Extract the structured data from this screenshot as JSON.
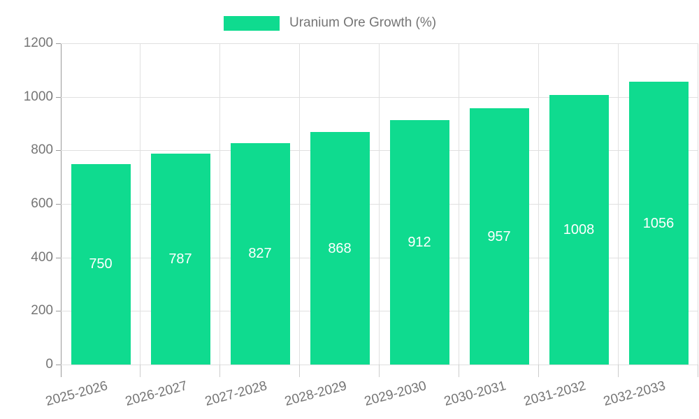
{
  "chart": {
    "legend": {
      "label": "Uranium Ore Growth (%)"
    },
    "colors": {
      "bar": "#0fdb8f",
      "grid": "#e0e0e0",
      "grid_dark": "#cccccc",
      "axis": "#999999",
      "text": "#757575",
      "value_label": "#ffffff",
      "background": "#ffffff"
    }
  },
  "chart_data": {
    "type": "bar",
    "title": "Uranium Ore Growth (%)",
    "series_name": "Uranium Ore Growth (%)",
    "categories": [
      "2025-2026",
      "2026-2027",
      "2027-2028",
      "2028-2029",
      "2029-2030",
      "2030-2031",
      "2031-2032",
      "2032-2033"
    ],
    "values": [
      750,
      787,
      827,
      868,
      912,
      957,
      1008,
      1056
    ],
    "xlabel": "",
    "ylabel": "",
    "ylim": [
      0,
      1200
    ],
    "yticks": [
      0,
      200,
      400,
      600,
      800,
      1000,
      1200
    ],
    "grid": true,
    "legend_position": "top-center",
    "value_labels_position": "inside-center",
    "x_tick_rotation_deg": -15
  }
}
